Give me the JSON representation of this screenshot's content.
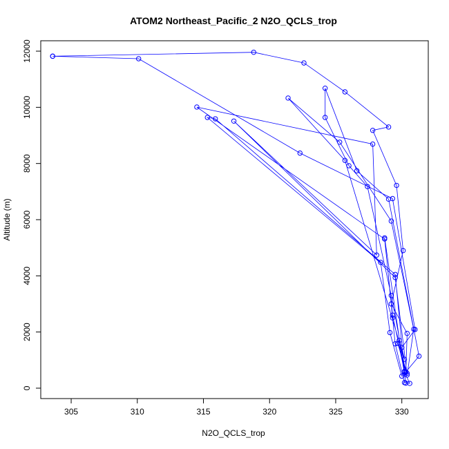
{
  "chart_data": {
    "type": "line",
    "title": "ATOM2 Northeast_Pacific_2 N2O_QCLS_trop",
    "xlabel": "N2O_QCLS_trop",
    "ylabel": "Altitude (m)",
    "xlim": [
      302.7,
      332.0
    ],
    "ylim": [
      -370,
      12370
    ],
    "xticks": [
      305,
      310,
      315,
      320,
      325,
      330
    ],
    "yticks": [
      0,
      2000,
      4000,
      6000,
      8000,
      10000,
      12000
    ],
    "grid": false,
    "series_color": "#0000ff",
    "markers": "open-circle",
    "series": [
      {
        "x": [
          303.6,
          318.8,
          322.6,
          325.7,
          329.0,
          327.8,
          329.6,
          330.1,
          329.2,
          330.4,
          330.3,
          329.2,
          327.4,
          326.0,
          324.2,
          324.2,
          326.6,
          329.0,
          331.3,
          330.3,
          329.7,
          330.4,
          330.0,
          329.1,
          328.4,
          315.3,
          315.9,
          329.5,
          330.2,
          330.6,
          330.2,
          329.5,
          329.3,
          328.7,
          330.3,
          329.8,
          330.2,
          329.3,
          328.7,
          314.5,
          327.8,
          328.1,
          317.3,
          329.5,
          330.4,
          330.9,
          329.2,
          325.3,
          321.4,
          325.7,
          330.2,
          330.0,
          331.0,
          329.3,
          322.3,
          310.1,
          303.6
        ],
        "y": [
          11820,
          11960,
          11580,
          10550,
          9300,
          9180,
          7220,
          4900,
          3000,
          1950,
          560,
          3300,
          7180,
          7920,
          9640,
          10680,
          7740,
          6730,
          1140,
          580,
          1590,
          530,
          430,
          1980,
          4480,
          9640,
          9590,
          4050,
          580,
          170,
          200,
          1580,
          2500,
          5350,
          180,
          1700,
          600,
          2600,
          5310,
          10010,
          8690,
          4740,
          9510,
          3940,
          470,
          2100,
          5950,
          8760,
          10330,
          8110,
          1030,
          1450,
          2090,
          6750,
          8370,
          11730,
          11820
        ]
      }
    ]
  }
}
